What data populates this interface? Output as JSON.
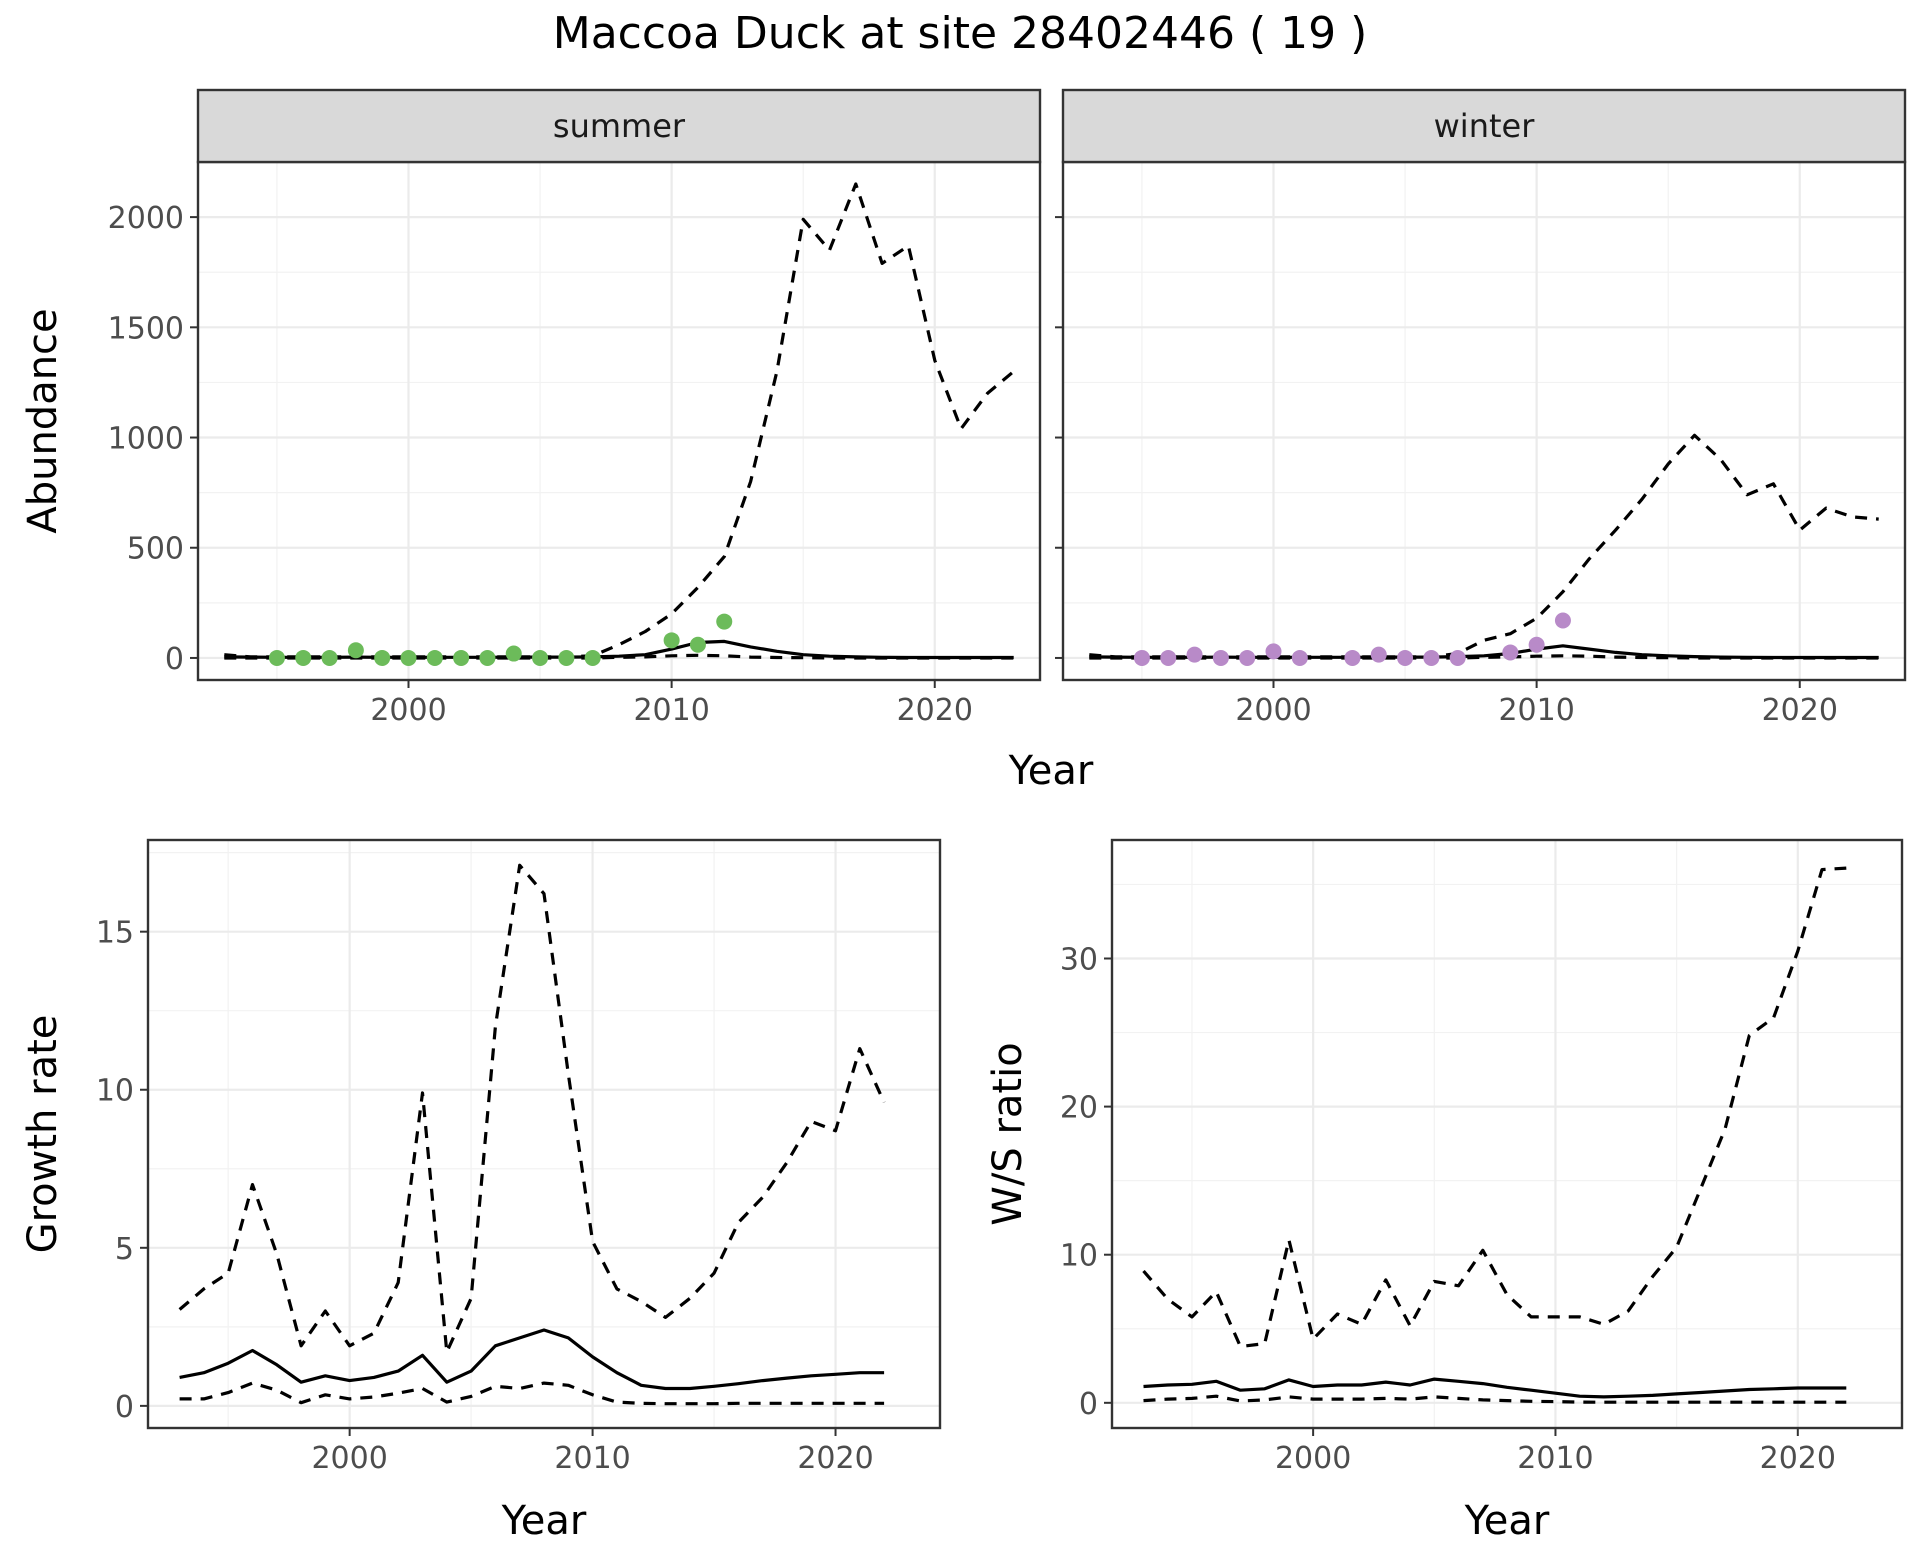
{
  "title": "Maccoa Duck at site 28402446 ( 19 )",
  "colors": {
    "summer": "#6cbb5a",
    "winter": "#b88ac8",
    "line": "#000000",
    "strip": "#d9d9d9",
    "grid_major": "#ebebeb",
    "grid_minor": "#f2f2f2"
  },
  "chart_data": [
    {
      "type": "line",
      "facet": "summer",
      "xlabel": "Year",
      "ylabel": "Abundance",
      "xlim": [
        1992,
        2024
      ],
      "ylim": [
        -100,
        2250
      ],
      "xticks": [
        2000,
        2010,
        2020
      ],
      "yticks": [
        0,
        500,
        1000,
        1500,
        2000
      ],
      "grid": true,
      "series": [
        {
          "role": "mean",
          "style": "solid",
          "x": [
            1993,
            1994,
            1995,
            1996,
            1997,
            1998,
            1999,
            2000,
            2001,
            2002,
            2003,
            2004,
            2005,
            2006,
            2007,
            2008,
            2009,
            2010,
            2011,
            2012,
            2013,
            2014,
            2015,
            2016,
            2017,
            2018,
            2019,
            2020,
            2021,
            2022,
            2023
          ],
          "y": [
            5,
            4,
            3,
            3,
            3,
            4,
            3,
            3,
            3,
            3,
            3,
            4,
            4,
            4,
            5,
            8,
            15,
            40,
            70,
            75,
            50,
            30,
            15,
            8,
            5,
            3,
            2,
            2,
            2,
            2,
            2
          ]
        },
        {
          "role": "upper",
          "style": "dashed",
          "x": [
            1993,
            1994,
            1995,
            1996,
            1997,
            1998,
            1999,
            2000,
            2001,
            2002,
            2003,
            2004,
            2005,
            2006,
            2007,
            2008,
            2009,
            2010,
            2011,
            2012,
            2013,
            2014,
            2015,
            2016,
            2017,
            2018,
            2019,
            2020,
            2021,
            2022,
            2023
          ],
          "y": [
            15,
            5,
            5,
            5,
            5,
            5,
            5,
            5,
            5,
            5,
            5,
            5,
            5,
            5,
            10,
            60,
            120,
            200,
            320,
            460,
            800,
            1300,
            1990,
            1850,
            2150,
            1790,
            1870,
            1350,
            1040,
            1200,
            1300
          ]
        },
        {
          "role": "lower",
          "style": "dashed",
          "x": [
            1993,
            1994,
            1995,
            1996,
            1997,
            1998,
            1999,
            2000,
            2001,
            2002,
            2003,
            2004,
            2005,
            2006,
            2007,
            2008,
            2009,
            2010,
            2011,
            2012,
            2013,
            2014,
            2015,
            2016,
            2017,
            2018,
            2019,
            2020,
            2021,
            2022,
            2023
          ],
          "y": [
            0,
            0,
            0,
            0,
            0,
            0,
            0,
            0,
            0,
            0,
            0,
            0,
            0,
            0,
            0,
            3,
            5,
            10,
            12,
            10,
            4,
            2,
            1,
            0,
            0,
            0,
            0,
            0,
            0,
            0,
            0
          ]
        }
      ],
      "points": {
        "x": [
          1995,
          1996,
          1997,
          1998,
          1999,
          2000,
          2001,
          2002,
          2003,
          2004,
          2005,
          2006,
          2007,
          2010,
          2011,
          2012
        ],
        "y": [
          0,
          0,
          0,
          35,
          0,
          0,
          0,
          0,
          0,
          20,
          0,
          0,
          0,
          80,
          60,
          165
        ]
      }
    },
    {
      "type": "line",
      "facet": "winter",
      "xlabel": "Year",
      "ylabel": "Abundance",
      "xlim": [
        1992,
        2024
      ],
      "ylim": [
        -100,
        2250
      ],
      "xticks": [
        2000,
        2010,
        2020
      ],
      "yticks": [
        0,
        500,
        1000,
        1500,
        2000
      ],
      "grid": true,
      "series": [
        {
          "role": "mean",
          "style": "solid",
          "x": [
            1993,
            1994,
            1995,
            1996,
            1997,
            1998,
            1999,
            2000,
            2001,
            2002,
            2003,
            2004,
            2005,
            2006,
            2007,
            2008,
            2009,
            2010,
            2011,
            2012,
            2013,
            2014,
            2015,
            2016,
            2017,
            2018,
            2019,
            2020,
            2021,
            2022,
            2023
          ],
          "y": [
            5,
            4,
            3,
            3,
            3,
            4,
            3,
            3,
            3,
            3,
            3,
            4,
            4,
            4,
            6,
            10,
            20,
            40,
            55,
            40,
            25,
            15,
            10,
            6,
            4,
            3,
            2,
            2,
            2,
            2,
            2
          ]
        },
        {
          "role": "upper",
          "style": "dashed",
          "x": [
            1993,
            1994,
            1995,
            1996,
            1997,
            1998,
            1999,
            2000,
            2001,
            2002,
            2003,
            2004,
            2005,
            2006,
            2007,
            2008,
            2009,
            2010,
            2011,
            2012,
            2013,
            2014,
            2015,
            2016,
            2017,
            2018,
            2019,
            2020,
            2021,
            2022,
            2023
          ],
          "y": [
            15,
            5,
            5,
            5,
            5,
            5,
            5,
            5,
            5,
            5,
            5,
            5,
            5,
            5,
            20,
            80,
            110,
            180,
            300,
            450,
            580,
            720,
            880,
            1010,
            900,
            740,
            790,
            580,
            680,
            640,
            630
          ]
        },
        {
          "role": "lower",
          "style": "dashed",
          "x": [
            1993,
            1994,
            1995,
            1996,
            1997,
            1998,
            1999,
            2000,
            2001,
            2002,
            2003,
            2004,
            2005,
            2006,
            2007,
            2008,
            2009,
            2010,
            2011,
            2012,
            2013,
            2014,
            2015,
            2016,
            2017,
            2018,
            2019,
            2020,
            2021,
            2022,
            2023
          ],
          "y": [
            0,
            0,
            0,
            0,
            0,
            0,
            0,
            0,
            0,
            0,
            0,
            0,
            0,
            0,
            0,
            3,
            5,
            8,
            10,
            8,
            4,
            2,
            1,
            0,
            0,
            0,
            0,
            0,
            0,
            0,
            0
          ]
        }
      ],
      "points": {
        "x": [
          1995,
          1996,
          1997,
          1998,
          1999,
          2000,
          2001,
          2003,
          2004,
          2005,
          2006,
          2007,
          2009,
          2010,
          2011
        ],
        "y": [
          0,
          0,
          15,
          0,
          0,
          30,
          0,
          0,
          15,
          0,
          0,
          0,
          25,
          60,
          170
        ]
      }
    },
    {
      "type": "line",
      "facet": "",
      "xlabel": "Year",
      "ylabel": "Growth rate",
      "xlim": [
        1991.7,
        2024.3
      ],
      "ylim": [
        -0.7,
        17.9
      ],
      "xticks": [
        2000,
        2010,
        2020
      ],
      "yticks": [
        0,
        5,
        10,
        15
      ],
      "grid": true,
      "series": [
        {
          "role": "mean",
          "style": "solid",
          "x": [
            1993,
            1994,
            1995,
            1996,
            1997,
            1998,
            1999,
            2000,
            2001,
            2002,
            2003,
            2004,
            2005,
            2006,
            2007,
            2008,
            2009,
            2010,
            2011,
            2012,
            2013,
            2014,
            2015,
            2016,
            2017,
            2018,
            2019,
            2020,
            2021,
            2022
          ],
          "y": [
            0.9,
            1.05,
            1.35,
            1.75,
            1.3,
            0.75,
            0.95,
            0.8,
            0.9,
            1.1,
            1.6,
            0.75,
            1.1,
            1.9,
            2.15,
            2.4,
            2.15,
            1.55,
            1.05,
            0.65,
            0.55,
            0.55,
            0.62,
            0.7,
            0.8,
            0.88,
            0.95,
            1.0,
            1.05,
            1.05
          ]
        },
        {
          "role": "upper",
          "style": "dashed",
          "x": [
            1993,
            1994,
            1995,
            1996,
            1997,
            1998,
            1999,
            2000,
            2001,
            2002,
            2003,
            2004,
            2005,
            2006,
            2007,
            2008,
            2009,
            2010,
            2011,
            2012,
            2013,
            2014,
            2015,
            2016,
            2017,
            2018,
            2019,
            2020,
            2021,
            2022
          ],
          "y": [
            3.05,
            3.7,
            4.2,
            7.0,
            4.8,
            1.9,
            3.0,
            1.9,
            2.3,
            3.9,
            9.9,
            1.7,
            3.4,
            12.0,
            17.1,
            16.2,
            10.5,
            5.2,
            3.7,
            3.3,
            2.8,
            3.4,
            4.2,
            5.8,
            6.6,
            7.7,
            9.0,
            8.7,
            11.3,
            9.6
          ]
        },
        {
          "role": "lower",
          "style": "dashed",
          "x": [
            1993,
            1994,
            1995,
            1996,
            1997,
            1998,
            1999,
            2000,
            2001,
            2002,
            2003,
            2004,
            2005,
            2006,
            2007,
            2008,
            2009,
            2010,
            2011,
            2012,
            2013,
            2014,
            2015,
            2016,
            2017,
            2018,
            2019,
            2020,
            2021,
            2022
          ],
          "y": [
            0.22,
            0.22,
            0.42,
            0.72,
            0.5,
            0.1,
            0.35,
            0.22,
            0.28,
            0.4,
            0.55,
            0.12,
            0.3,
            0.62,
            0.55,
            0.72,
            0.65,
            0.35,
            0.12,
            0.08,
            0.07,
            0.07,
            0.07,
            0.08,
            0.08,
            0.08,
            0.08,
            0.08,
            0.08,
            0.08
          ]
        }
      ]
    },
    {
      "type": "line",
      "facet": "",
      "xlabel": "Year",
      "ylabel": "W/S ratio",
      "xlim": [
        1991.7,
        2024.3
      ],
      "ylim": [
        -1.7,
        38.0
      ],
      "xticks": [
        2000,
        2010,
        2020
      ],
      "yticks": [
        0,
        10,
        20,
        30
      ],
      "grid": true,
      "series": [
        {
          "role": "mean",
          "style": "solid",
          "x": [
            1993,
            1994,
            1995,
            1996,
            1997,
            1998,
            1999,
            2000,
            2001,
            2002,
            2003,
            2004,
            2005,
            2006,
            2007,
            2008,
            2009,
            2010,
            2011,
            2012,
            2013,
            2014,
            2015,
            2016,
            2017,
            2018,
            2019,
            2020,
            2021,
            2022
          ],
          "y": [
            1.1,
            1.2,
            1.25,
            1.45,
            0.85,
            0.95,
            1.55,
            1.1,
            1.2,
            1.2,
            1.4,
            1.2,
            1.6,
            1.45,
            1.3,
            1.05,
            0.85,
            0.65,
            0.45,
            0.4,
            0.45,
            0.5,
            0.6,
            0.7,
            0.8,
            0.9,
            0.95,
            1.0,
            1.0,
            1.0
          ]
        },
        {
          "role": "upper",
          "style": "dashed",
          "x": [
            1993,
            1994,
            1995,
            1996,
            1997,
            1998,
            1999,
            2000,
            2001,
            2002,
            2003,
            2004,
            2005,
            2006,
            2007,
            2008,
            2009,
            2010,
            2011,
            2012,
            2013,
            2014,
            2015,
            2016,
            2017,
            2018,
            2019,
            2020,
            2021,
            2022
          ],
          "y": [
            8.9,
            7.0,
            5.8,
            7.5,
            3.8,
            4.0,
            11.0,
            4.3,
            6.0,
            5.3,
            8.3,
            5.2,
            8.2,
            7.9,
            10.3,
            7.3,
            5.8,
            5.8,
            5.8,
            5.3,
            6.2,
            8.5,
            10.5,
            14.5,
            18.5,
            24.8,
            26.0,
            30.5,
            36.0,
            36.1
          ]
        },
        {
          "role": "lower",
          "style": "dashed",
          "x": [
            1993,
            1994,
            1995,
            1996,
            1997,
            1998,
            1999,
            2000,
            2001,
            2002,
            2003,
            2004,
            2005,
            2006,
            2007,
            2008,
            2009,
            2010,
            2011,
            2012,
            2013,
            2014,
            2015,
            2016,
            2017,
            2018,
            2019,
            2020,
            2021,
            2022
          ],
          "y": [
            0.15,
            0.25,
            0.3,
            0.45,
            0.12,
            0.2,
            0.4,
            0.25,
            0.25,
            0.25,
            0.3,
            0.25,
            0.4,
            0.3,
            0.2,
            0.15,
            0.1,
            0.08,
            0.05,
            0.04,
            0.04,
            0.04,
            0.04,
            0.04,
            0.04,
            0.04,
            0.04,
            0.04,
            0.04,
            0.04
          ]
        }
      ]
    }
  ]
}
